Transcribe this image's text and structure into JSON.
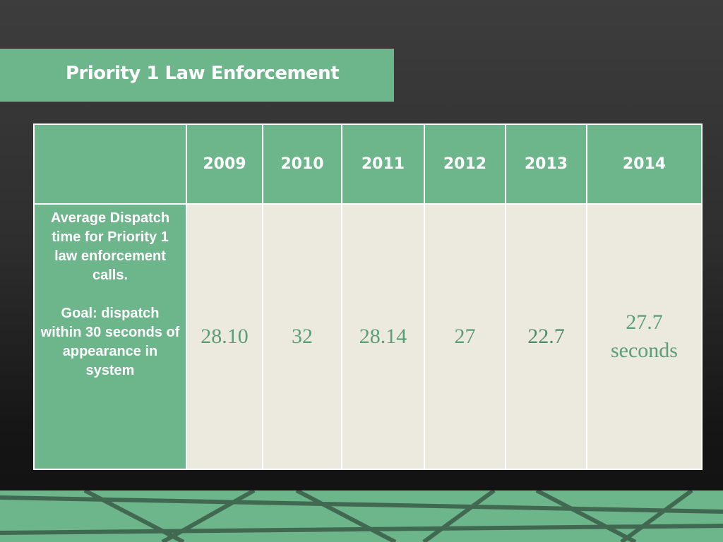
{
  "header": {
    "title": "Priority 1 Law Enforcement"
  },
  "table": {
    "columns": [
      "2009",
      "2010",
      "2011",
      "2012",
      "2013",
      "2014"
    ],
    "row_label": [
      "Average Dispatch time for Priority 1 law enforcement calls.",
      "Goal: dispatch within 30 seconds of appearance in system"
    ],
    "values": [
      "28.10",
      "32",
      "28.14",
      "27",
      "22.7",
      "27.7 seconds"
    ]
  }
}
